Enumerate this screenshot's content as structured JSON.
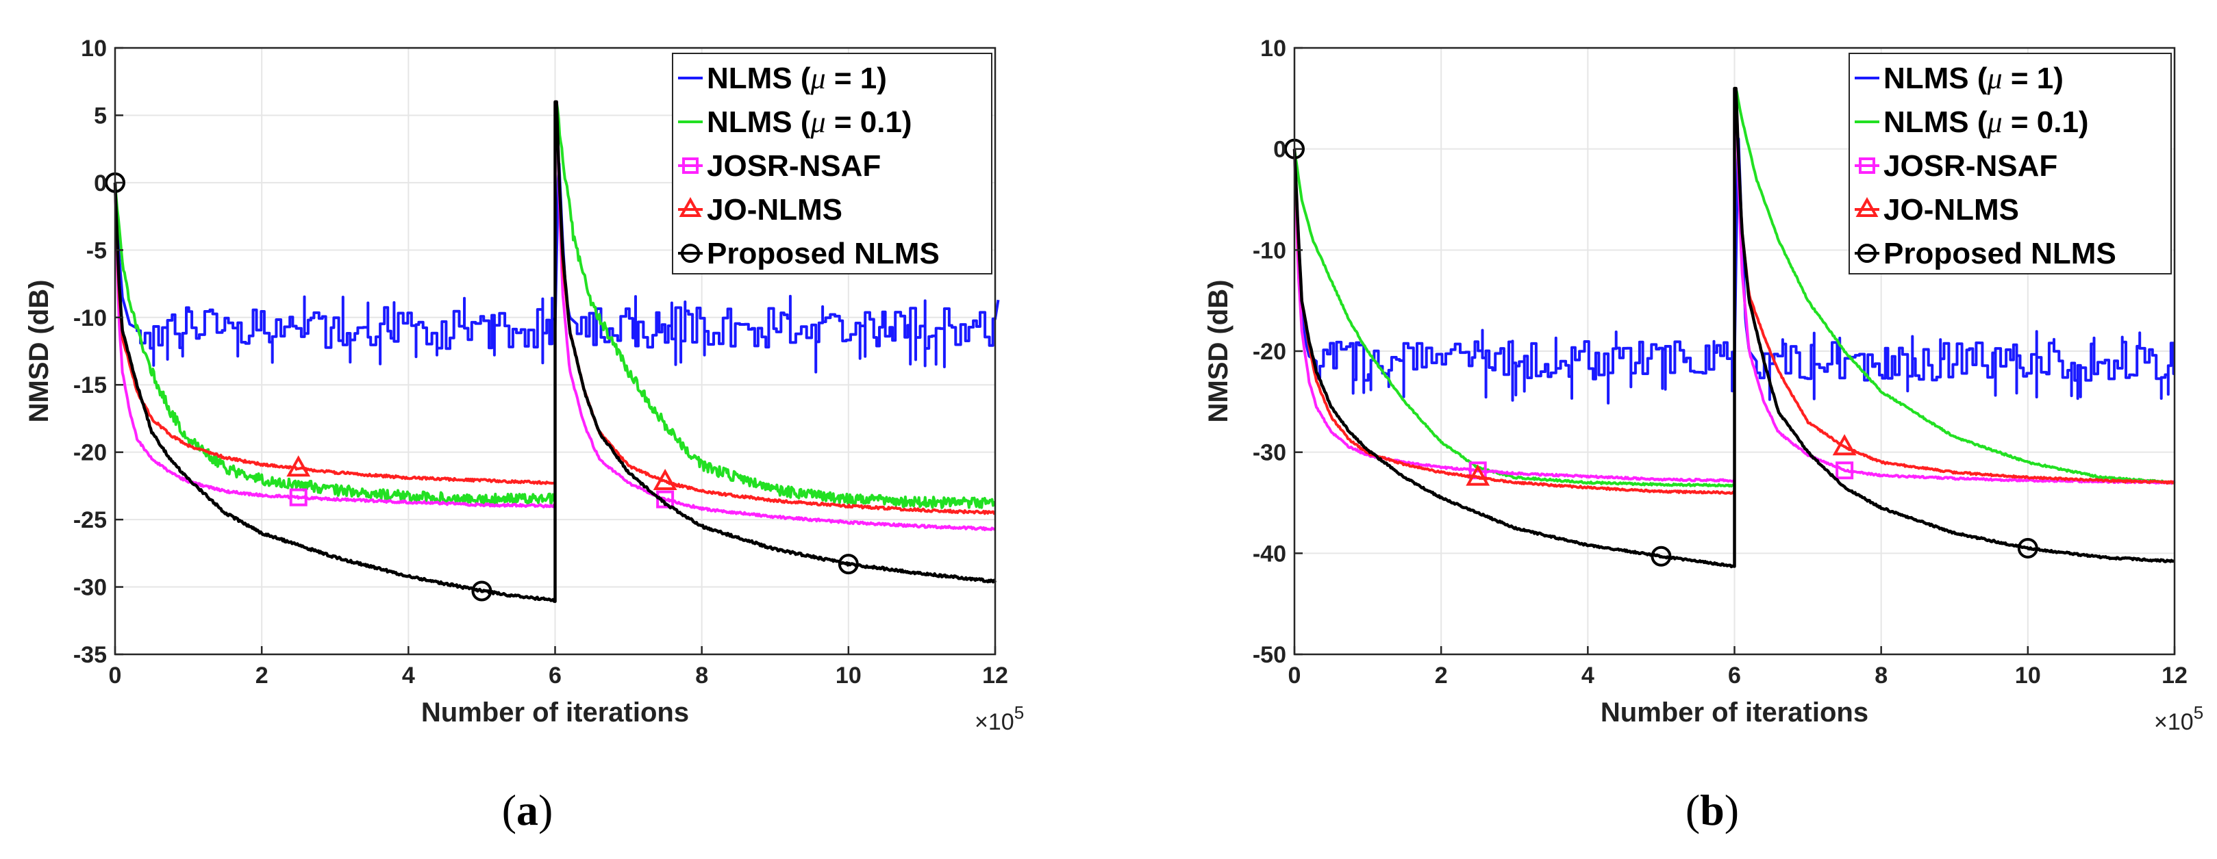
{
  "chart_data": [
    {
      "type": "line",
      "panel_label": "(a)",
      "xlabel": "Number of iterations",
      "ylabel": "NMSD (dB)",
      "x_multiplier": "×10^5",
      "x_multiplier_base": "×10",
      "x_multiplier_exp": "5",
      "xlim": [
        0,
        12
      ],
      "ylim": [
        -35,
        10
      ],
      "xticks": [
        0,
        2,
        4,
        6,
        8,
        10,
        12
      ],
      "yticks": [
        -35,
        -30,
        -25,
        -20,
        -15,
        -10,
        -5,
        0,
        5,
        10
      ],
      "grid": true,
      "legend_position": "top-right",
      "colors": {
        "nlms_mu1": "#1a1aff",
        "nlms_mu01": "#22e022",
        "josr": "#ff22ff",
        "jo": "#ff2020",
        "proposed": "#000000"
      },
      "series": [
        {
          "name": "NLMS (μ = 1)",
          "name_prefix": "NLMS (",
          "name_symbol": "μ",
          "name_suffix": " = 1)",
          "color": "#1a1aff",
          "marker": "none",
          "x": [
            0,
            0.05,
            0.1,
            0.15,
            0.2,
            0.3,
            6.0,
            6.05,
            6.1,
            6.15,
            6.2,
            6.3,
            12.0
          ],
          "y": [
            0,
            -5,
            -8.5,
            -9.5,
            -10.5,
            -10.8,
            -10.8,
            2,
            -4,
            -8.5,
            -10,
            -10.5,
            -10.5
          ],
          "steady_level": -10.8,
          "fluctuation": 2.2
        },
        {
          "name": "NLMS (μ = 0.1)",
          "name_prefix": "NLMS (",
          "name_symbol": "μ",
          "name_suffix": " = 0.1)",
          "color": "#22e022",
          "marker": "none",
          "x": [
            0,
            0.1,
            0.25,
            0.5,
            0.75,
            1.0,
            1.5,
            2.0,
            3.0,
            4.0,
            5.0,
            6.0,
            6.02,
            6.1,
            6.25,
            6.5,
            7.0,
            7.5,
            8.0,
            9.0,
            10.0,
            11.0,
            12.0
          ],
          "y": [
            0,
            -6,
            -10,
            -14,
            -17,
            -19,
            -21.2,
            -22,
            -22.8,
            -23.3,
            -23.5,
            -23.5,
            6,
            2,
            -4,
            -9,
            -14,
            -18,
            -21,
            -22.8,
            -23.5,
            -23.7,
            -23.8
          ],
          "fluctuation": 0.8
        },
        {
          "name": "JOSR-NSAF",
          "color": "#ff22ff",
          "marker": "square",
          "marker_x": [
            2.5,
            7.5
          ],
          "x": [
            0,
            0.05,
            0.1,
            0.2,
            0.3,
            0.5,
            0.75,
            1.0,
            1.5,
            2.0,
            3.0,
            4.0,
            5.0,
            6.0,
            6.02,
            6.05,
            6.1,
            6.2,
            6.4,
            6.6,
            7.0,
            7.5,
            8.0,
            9.0,
            10.0,
            11.0,
            12.0
          ],
          "y": [
            0,
            -10,
            -14,
            -17,
            -19,
            -20.5,
            -21.5,
            -22.2,
            -22.9,
            -23.2,
            -23.5,
            -23.7,
            -23.9,
            -24,
            6,
            0,
            -8,
            -14,
            -18,
            -20.5,
            -22.3,
            -23.5,
            -24.2,
            -24.8,
            -25.2,
            -25.5,
            -25.7
          ]
        },
        {
          "name": "JO-NLMS",
          "color": "#ff2020",
          "marker": "triangle",
          "marker_x": [
            2.5,
            7.5
          ],
          "x": [
            0,
            0.05,
            0.1,
            0.2,
            0.3,
            0.5,
            0.75,
            1.0,
            1.5,
            2.0,
            3.0,
            4.0,
            5.0,
            6.0,
            6.02,
            6.05,
            6.1,
            6.2,
            6.4,
            6.6,
            7.0,
            7.5,
            8.0,
            9.0,
            10.0,
            11.0,
            12.0
          ],
          "y": [
            0,
            -8,
            -11.5,
            -13.5,
            -15.5,
            -17.5,
            -18.7,
            -19.5,
            -20.4,
            -20.9,
            -21.5,
            -21.9,
            -22.1,
            -22.3,
            6,
            1,
            -6,
            -11,
            -15.5,
            -18.5,
            -21,
            -22.2,
            -22.9,
            -23.6,
            -24,
            -24.3,
            -24.5
          ]
        },
        {
          "name": "Proposed NLMS",
          "color": "#000000",
          "marker": "circle",
          "marker_x": [
            0,
            5,
            10
          ],
          "x": [
            0,
            0.05,
            0.1,
            0.2,
            0.3,
            0.5,
            0.75,
            1.0,
            1.5,
            2.0,
            3.0,
            4.0,
            5.0,
            5.5,
            6.0,
            6.02,
            6.05,
            6.1,
            6.2,
            6.4,
            6.6,
            7.0,
            7.5,
            8.0,
            9.0,
            10.0,
            11.0,
            12.0
          ],
          "y": [
            0,
            -7,
            -11,
            -13,
            -15,
            -18.5,
            -20.5,
            -22,
            -24.5,
            -26,
            -27.8,
            -29.2,
            -30.3,
            -30.7,
            -31,
            6,
            1,
            -5,
            -11,
            -15.5,
            -18.5,
            -21.5,
            -23.8,
            -25.5,
            -27.2,
            -28.3,
            -29,
            -29.6
          ]
        }
      ]
    },
    {
      "type": "line",
      "panel_label": "(b)",
      "xlabel": "Number of iterations",
      "ylabel": "NMSD (dB)",
      "x_multiplier": "×10^5",
      "x_multiplier_base": "×10",
      "x_multiplier_exp": "5",
      "xlim": [
        0,
        12
      ],
      "ylim": [
        -50,
        10
      ],
      "xticks": [
        0,
        2,
        4,
        6,
        8,
        10,
        12
      ],
      "yticks": [
        -50,
        -40,
        -30,
        -20,
        -10,
        0,
        10
      ],
      "grid": true,
      "legend_position": "top-right",
      "colors": {
        "nlms_mu1": "#1a1aff",
        "nlms_mu01": "#22e022",
        "josr": "#ff22ff",
        "jo": "#ff2020",
        "proposed": "#000000"
      },
      "series": [
        {
          "name": "NLMS (μ = 1)",
          "name_prefix": "NLMS (",
          "name_symbol": "μ",
          "name_suffix": " = 1)",
          "color": "#1a1aff",
          "marker": "none",
          "x": [
            0,
            0.05,
            0.1,
            0.15,
            0.2,
            0.3,
            6.0,
            6.05,
            6.1,
            6.15,
            6.2,
            6.3,
            12.0
          ],
          "y": [
            0,
            -8,
            -15,
            -19,
            -20.5,
            -21,
            -21,
            2,
            -8,
            -17,
            -20,
            -21,
            -21
          ],
          "steady_level": -21,
          "fluctuation": 2.8
        },
        {
          "name": "NLMS (μ = 0.1)",
          "name_prefix": "NLMS (",
          "name_symbol": "μ",
          "name_suffix": " = 0.1)",
          "color": "#22e022",
          "marker": "none",
          "x": [
            0,
            0.1,
            0.25,
            0.5,
            0.75,
            1.0,
            1.5,
            2.0,
            2.5,
            3.0,
            4.0,
            5.0,
            6.0,
            6.02,
            6.1,
            6.3,
            6.6,
            7.0,
            7.5,
            8.0,
            9.0,
            10.0,
            11.0,
            12.0
          ],
          "y": [
            0,
            -5,
            -9,
            -13,
            -17,
            -20,
            -25,
            -29,
            -31.5,
            -32.5,
            -33,
            -33.2,
            -33.3,
            6,
            3,
            -3,
            -9,
            -15,
            -20,
            -24,
            -28.5,
            -31,
            -32.5,
            -33
          ]
        },
        {
          "name": "JOSR-NSAF",
          "color": "#ff22ff",
          "marker": "square",
          "marker_x": [
            2.5,
            7.5
          ],
          "x": [
            0,
            0.05,
            0.1,
            0.2,
            0.3,
            0.5,
            0.75,
            1.0,
            1.5,
            2.0,
            3.0,
            4.0,
            5.0,
            6.0,
            6.02,
            6.05,
            6.1,
            6.2,
            6.4,
            6.6,
            7.0,
            7.5,
            8.0,
            9.0,
            10.0,
            11.0,
            12.0
          ],
          "y": [
            0,
            -12,
            -18,
            -23,
            -25.5,
            -28,
            -29.5,
            -30.3,
            -31,
            -31.5,
            -32.1,
            -32.4,
            -32.7,
            -32.8,
            6,
            -2,
            -12,
            -20,
            -25,
            -28,
            -30.3,
            -31.8,
            -32.3,
            -32.6,
            -32.8,
            -32.9,
            -33
          ]
        },
        {
          "name": "JO-NLMS",
          "color": "#ff2020",
          "marker": "triangle",
          "marker_x": [
            2.5,
            7.5
          ],
          "x": [
            0,
            0.05,
            0.1,
            0.2,
            0.3,
            0.5,
            0.75,
            1.0,
            1.5,
            2.0,
            3.0,
            4.0,
            5.0,
            6.0,
            6.02,
            6.05,
            6.1,
            6.2,
            6.4,
            6.6,
            7.0,
            7.5,
            8.0,
            9.0,
            10.0,
            11.0,
            12.0
          ],
          "y": [
            0,
            -9,
            -15,
            -19.5,
            -23,
            -26.5,
            -28.8,
            -30.1,
            -31.2,
            -32,
            -33,
            -33.5,
            -33.9,
            -34,
            6,
            0,
            -8,
            -14.5,
            -18.5,
            -22,
            -27,
            -29.5,
            -31,
            -32,
            -32.5,
            -32.8,
            -33
          ]
        },
        {
          "name": "Proposed NLMS",
          "color": "#000000",
          "marker": "circle",
          "marker_x": [
            0,
            5,
            10
          ],
          "x": [
            0,
            0.05,
            0.1,
            0.2,
            0.3,
            0.5,
            0.75,
            1.0,
            1.5,
            2.0,
            3.0,
            4.0,
            5.0,
            5.5,
            6.0,
            6.02,
            6.05,
            6.1,
            6.2,
            6.4,
            6.6,
            7.0,
            7.5,
            8.0,
            9.0,
            10.0,
            11.0,
            12.0
          ],
          "y": [
            0,
            -8,
            -15,
            -19,
            -22,
            -25.5,
            -28,
            -29.8,
            -32.5,
            -34.5,
            -37.5,
            -39.2,
            -40.3,
            -40.8,
            -41.3,
            6,
            0,
            -8,
            -15,
            -21,
            -26,
            -30,
            -33.5,
            -35.5,
            -38,
            -39.5,
            -40.4,
            -40.8
          ]
        }
      ]
    }
  ]
}
